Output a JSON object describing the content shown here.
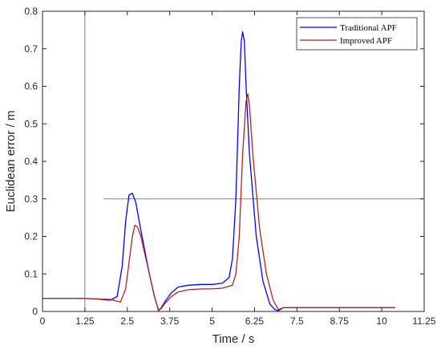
{
  "chart_data": {
    "type": "line",
    "xlabel": "Time / s",
    "ylabel": "Euclidean error / m",
    "xlim": [
      0,
      11.25
    ],
    "ylim": [
      0,
      0.8
    ],
    "xticks": [
      "0",
      "1.25",
      "2.5",
      "3.75",
      "5",
      "6.25",
      "7.5",
      "8.75",
      "10",
      "11.25"
    ],
    "yticks": [
      "0",
      "0.1",
      "0.2",
      "0.3",
      "0.4",
      "0.5",
      "0.6",
      "0.7",
      "0.8"
    ],
    "grid": false,
    "legend_position": "top-right",
    "reference_lines": [
      {
        "orientation": "vertical",
        "x": 1.25,
        "y_range": [
          0,
          0.8
        ]
      },
      {
        "orientation": "horizontal",
        "y": 0.3,
        "x_range": [
          1.8,
          11.25
        ]
      }
    ],
    "series": [
      {
        "name": "Traditional APF",
        "color": "#0000ff",
        "x": [
          0,
          1.0,
          1.5,
          2.0,
          2.2,
          2.35,
          2.45,
          2.55,
          2.65,
          2.75,
          2.85,
          3.0,
          3.15,
          3.3,
          3.42,
          3.5,
          3.6,
          3.8,
          4.0,
          4.3,
          4.7,
          5.0,
          5.3,
          5.5,
          5.6,
          5.7,
          5.8,
          5.86,
          5.9,
          5.95,
          6.0,
          6.1,
          6.3,
          6.5,
          6.7,
          6.85,
          6.95,
          7.1,
          7.5,
          8.5,
          9.5,
          10.4
        ],
        "y": [
          0.035,
          0.035,
          0.034,
          0.03,
          0.04,
          0.12,
          0.24,
          0.31,
          0.315,
          0.29,
          0.24,
          0.17,
          0.1,
          0.04,
          0.003,
          0.01,
          0.025,
          0.05,
          0.065,
          0.07,
          0.072,
          0.072,
          0.075,
          0.09,
          0.14,
          0.3,
          0.6,
          0.72,
          0.745,
          0.72,
          0.6,
          0.42,
          0.2,
          0.08,
          0.02,
          0.005,
          0.002,
          0.01,
          0.01,
          0.01,
          0.01,
          0.01
        ]
      },
      {
        "name": "Improved APF",
        "color": "#b22222",
        "x": [
          0,
          1.0,
          1.5,
          2.0,
          2.3,
          2.45,
          2.55,
          2.65,
          2.72,
          2.8,
          2.9,
          3.0,
          3.15,
          3.3,
          3.42,
          3.5,
          3.6,
          3.8,
          4.0,
          4.3,
          4.7,
          5.0,
          5.3,
          5.6,
          5.7,
          5.8,
          5.9,
          6.0,
          6.05,
          6.1,
          6.2,
          6.4,
          6.6,
          6.8,
          6.95,
          7.1,
          7.5,
          8.5,
          9.5,
          10.4
        ],
        "y": [
          0.035,
          0.035,
          0.034,
          0.032,
          0.025,
          0.06,
          0.13,
          0.2,
          0.23,
          0.225,
          0.2,
          0.16,
          0.1,
          0.04,
          0.002,
          0.008,
          0.02,
          0.04,
          0.052,
          0.058,
          0.06,
          0.06,
          0.062,
          0.07,
          0.1,
          0.2,
          0.42,
          0.56,
          0.58,
          0.55,
          0.42,
          0.22,
          0.1,
          0.03,
          0.005,
          0.01,
          0.01,
          0.01,
          0.01,
          0.01
        ]
      }
    ]
  }
}
